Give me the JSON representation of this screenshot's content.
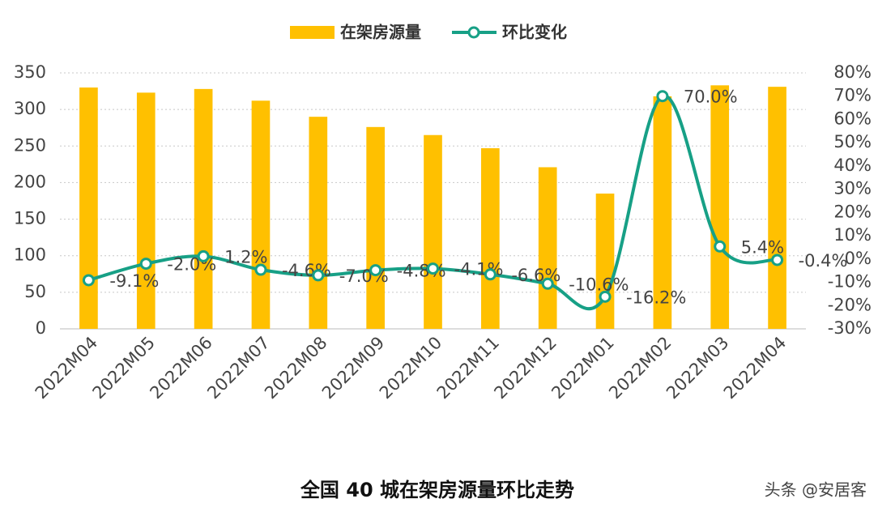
{
  "chart_data": {
    "type": "bar_line",
    "title": "全国 40 城在架房源量环比走势",
    "watermark": "头条 @安居客",
    "categories": [
      "2022M04",
      "2022M05",
      "2022M06",
      "2022M07",
      "2022M08",
      "2022M09",
      "2022M10",
      "2022M11",
      "2022M12",
      "2022M01",
      "2022M02",
      "2022M03",
      "2022M04"
    ],
    "series": [
      {
        "name": "在架房源量",
        "color": "#FFC000",
        "type": "bar",
        "values": [
          330,
          323,
          328,
          312,
          290,
          276,
          265,
          247,
          221,
          185,
          318,
          333,
          331
        ]
      },
      {
        "name": "环比变化",
        "color": "#17A086",
        "type": "line",
        "axis": "y2",
        "values": [
          -9.1,
          -2.0,
          1.2,
          -4.6,
          -7.0,
          -4.8,
          -4.1,
          -6.6,
          -10.6,
          -16.2,
          70.0,
          5.4,
          -0.4
        ],
        "value_labels": [
          "-9.1%",
          "-2.0%",
          "1.2%",
          "-4.6%",
          "-7.0%",
          "-4.8%",
          "-4.1%",
          "-6.6%",
          "-10.6%",
          "-16.2%",
          "70.0%",
          "5.4%",
          "-0.4%"
        ]
      }
    ],
    "ylim": [
      0,
      350
    ],
    "yticks": [
      0,
      50,
      100,
      150,
      200,
      250,
      300,
      350
    ],
    "y2lim": [
      -30,
      80
    ],
    "y2ticks": [
      {
        "value": 80,
        "label": "80%"
      },
      {
        "value": 70,
        "label": "70%"
      },
      {
        "value": 60,
        "label": "60%"
      },
      {
        "value": 50,
        "label": "50%"
      },
      {
        "value": 40,
        "label": "40%"
      },
      {
        "value": 30,
        "label": "30%"
      },
      {
        "value": 20,
        "label": "20%"
      },
      {
        "value": 10,
        "label": "10%"
      },
      {
        "value": 0,
        "label": "0%"
      },
      {
        "value": -10,
        "label": "-10%"
      },
      {
        "value": -20,
        "label": "-20%"
      },
      {
        "value": -30,
        "label": "-30%"
      }
    ],
    "grid": true
  }
}
